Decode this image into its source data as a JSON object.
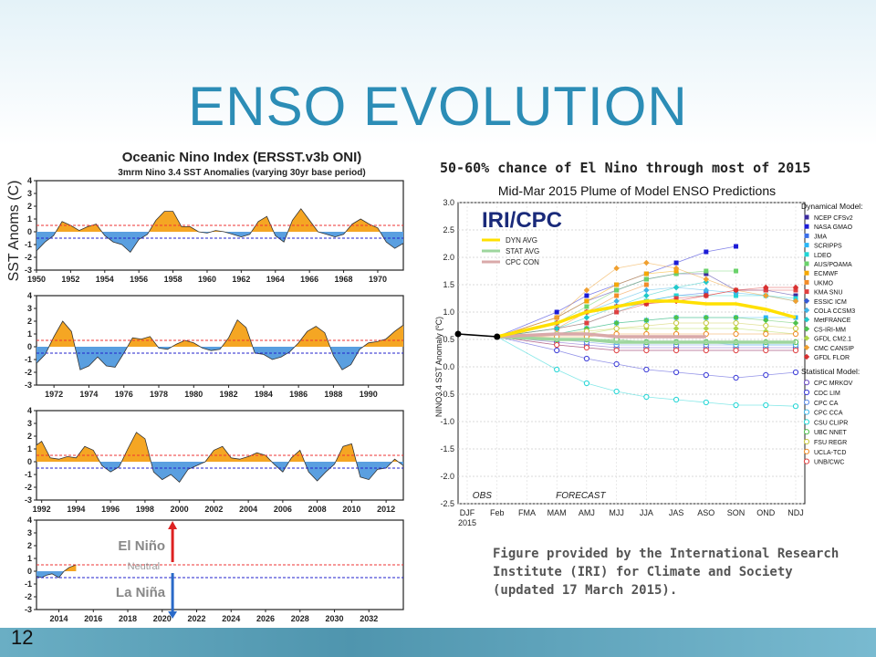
{
  "slide": {
    "title": "ENSO EVOLUTION",
    "page_number": "12",
    "headline": "50-60% chance of El Nino through most of 2015",
    "caption": "Figure provided by the International Research Institute (IRI) for Climate and Society (updated 17 March 2015)."
  },
  "colors": {
    "title": "#2c8db6",
    "warm_fill": "#f5a623",
    "cold_fill": "#5a9fe0",
    "threshold_warm": "#e33",
    "threshold_cold": "#22c",
    "dyn_avg": "#ffe000",
    "stat_avg": "#9ed69e",
    "cpc_con": "#d9a9a9"
  },
  "chart_data": [
    {
      "type": "area",
      "title": "Oceanic Nino Index (ERSST.v3b ONI)",
      "subtitle": "3mrm Nino 3.4 SST Anomalies (varying 30yr base period)",
      "ylabel": "SST Anoms (C)",
      "ylim": [
        -3,
        4
      ],
      "yticks": [
        "-3",
        "-2",
        "-1",
        "0",
        "1",
        "2",
        "3",
        "4"
      ],
      "thresholds": [
        0.5,
        -0.5
      ],
      "panels": [
        {
          "xticks": [
            "1950",
            "1952",
            "1954",
            "1956",
            "1958",
            "1960",
            "1962",
            "1964",
            "1966",
            "1968",
            "1970"
          ],
          "xrange": [
            1950,
            1971.5
          ],
          "x": [
            1950,
            1950.5,
            1951,
            1951.5,
            1952,
            1952.5,
            1953,
            1953.5,
            1954,
            1954.5,
            1955,
            1955.5,
            1956,
            1956.5,
            1957,
            1957.5,
            1958,
            1958.5,
            1959,
            1959.5,
            1960,
            1960.5,
            1961,
            1961.5,
            1962,
            1962.5,
            1963,
            1963.5,
            1964,
            1964.5,
            1965,
            1965.5,
            1966,
            1966.5,
            1967,
            1967.5,
            1968,
            1968.5,
            1969,
            1969.5,
            1970,
            1970.5,
            1971,
            1971.5
          ],
          "y": [
            -1.5,
            -0.8,
            -0.3,
            0.8,
            0.5,
            0.1,
            0.4,
            0.6,
            -0.3,
            -0.8,
            -1.0,
            -1.6,
            -0.6,
            -0.2,
            0.9,
            1.6,
            1.6,
            0.4,
            0.4,
            0.0,
            -0.1,
            0.1,
            0.0,
            -0.2,
            -0.4,
            -0.2,
            0.8,
            1.2,
            -0.3,
            -0.8,
            0.9,
            1.8,
            0.9,
            0.0,
            -0.2,
            -0.4,
            -0.2,
            0.6,
            1.0,
            0.6,
            0.3,
            -0.8,
            -1.3,
            -0.9
          ]
        },
        {
          "xticks": [
            "1972",
            "1974",
            "1976",
            "1978",
            "1980",
            "1982",
            "1984",
            "1986",
            "1988",
            "1990"
          ],
          "xrange": [
            1971,
            1992
          ],
          "x": [
            1971,
            1971.5,
            1972,
            1972.5,
            1973,
            1973.5,
            1974,
            1974.5,
            1975,
            1975.5,
            1976,
            1976.5,
            1977,
            1977.5,
            1978,
            1978.5,
            1979,
            1979.5,
            1980,
            1980.5,
            1981,
            1981.5,
            1982,
            1982.5,
            1983,
            1983.5,
            1984,
            1984.5,
            1985,
            1985.5,
            1986,
            1986.5,
            1987,
            1987.5,
            1988,
            1988.5,
            1989,
            1989.5,
            1990,
            1990.5,
            1991,
            1991.5,
            1992
          ],
          "y": [
            -1.3,
            -0.6,
            0.8,
            2.0,
            1.2,
            -1.8,
            -1.5,
            -0.8,
            -1.5,
            -1.6,
            -0.5,
            0.7,
            0.6,
            0.8,
            -0.1,
            -0.2,
            0.2,
            0.5,
            0.3,
            -0.1,
            -0.3,
            -0.2,
            0.7,
            2.1,
            1.5,
            -0.5,
            -0.6,
            -1.0,
            -0.8,
            -0.4,
            0.3,
            1.2,
            1.6,
            1.1,
            -0.7,
            -1.8,
            -1.4,
            -0.2,
            0.3,
            0.4,
            0.6,
            1.2,
            1.7
          ]
        },
        {
          "xticks": [
            "1992",
            "1994",
            "1996",
            "1998",
            "2000",
            "2002",
            "2004",
            "2006",
            "2008",
            "2010",
            "2012"
          ],
          "xrange": [
            1991.7,
            2013
          ],
          "x": [
            1991.7,
            1992,
            1992.5,
            1993,
            1993.5,
            1994,
            1994.5,
            1995,
            1995.5,
            1996,
            1996.5,
            1997,
            1997.5,
            1998,
            1998.5,
            1999,
            1999.5,
            2000,
            2000.5,
            2001,
            2001.5,
            2002,
            2002.5,
            2003,
            2003.5,
            2004,
            2004.5,
            2005,
            2005.5,
            2006,
            2006.5,
            2007,
            2007.5,
            2008,
            2008.5,
            2009,
            2009.5,
            2010,
            2010.5,
            2011,
            2011.5,
            2012,
            2012.5,
            2013
          ],
          "y": [
            1.3,
            1.6,
            0.3,
            0.2,
            0.4,
            0.3,
            1.2,
            0.9,
            -0.3,
            -0.8,
            -0.4,
            1.0,
            2.3,
            1.8,
            -0.8,
            -1.4,
            -1.0,
            -1.6,
            -0.6,
            -0.3,
            0.0,
            0.9,
            1.2,
            0.3,
            0.2,
            0.4,
            0.7,
            0.5,
            -0.2,
            -0.8,
            0.3,
            0.9,
            -0.8,
            -1.5,
            -0.8,
            -0.2,
            1.2,
            1.4,
            -1.2,
            -1.4,
            -0.6,
            -0.5,
            0.2,
            -0.3
          ]
        },
        {
          "xticks": [
            "2014",
            "2016",
            "2018",
            "2020",
            "2022",
            "2024",
            "2026",
            "2028",
            "2030",
            "2032"
          ],
          "xrange": [
            2012.7,
            2034
          ],
          "x": [
            2012.7,
            2013,
            2013.3,
            2013.6,
            2014,
            2014.3,
            2014.6,
            2015
          ],
          "y": [
            -0.4,
            -0.5,
            -0.3,
            -0.2,
            -0.5,
            0.0,
            0.3,
            0.5
          ],
          "annotations": [
            "El Niño",
            "Neutral",
            "La Niña"
          ]
        }
      ]
    },
    {
      "type": "line",
      "title": "Mid-Mar 2015 Plume of Model ENSO Predictions",
      "ylabel": "NINO3.4 SST Anomaly (ºC)",
      "ylim": [
        -2.5,
        3.0
      ],
      "yticks": [
        "3.0",
        "2.5",
        "2.0",
        "1.5",
        "1.0",
        "0.5",
        "0.0",
        "-0.5",
        "-1.0",
        "-1.5",
        "-2.0",
        "-2.5"
      ],
      "categories": [
        "DJF",
        "Feb",
        "FMA",
        "MAM",
        "AMJ",
        "MJJ",
        "JJA",
        "JAS",
        "ASO",
        "SON",
        "OND",
        "NDJ"
      ],
      "year_label": "2015",
      "period_labels": [
        "OBS",
        "FORECAST"
      ],
      "logo_text": "IRI/CPC",
      "inset_legend": [
        "DYN AVG",
        "STAT AVG",
        "CPC CON"
      ],
      "legend_dynamical_title": "Dynamical Model:",
      "legend_dynamical": [
        {
          "name": "NCEP CFSv2",
          "color": "#3b2b9e",
          "marker": "square"
        },
        {
          "name": "NASA GMAO",
          "color": "#1b1bd6",
          "marker": "square"
        },
        {
          "name": "JMA",
          "color": "#3a6ee8",
          "marker": "square"
        },
        {
          "name": "SCRIPPS",
          "color": "#29b6f6",
          "marker": "square"
        },
        {
          "name": "LDEO",
          "color": "#20d5d5",
          "marker": "square"
        },
        {
          "name": "AUS/POAMA",
          "color": "#6ad26a",
          "marker": "square"
        },
        {
          "name": "ECMWF",
          "color": "#f6a800",
          "marker": "square"
        },
        {
          "name": "UKMO",
          "color": "#f28c28",
          "marker": "square"
        },
        {
          "name": "KMA SNU",
          "color": "#e04040",
          "marker": "square"
        },
        {
          "name": "ESSIC ICM",
          "color": "#3559d6",
          "marker": "diamond"
        },
        {
          "name": "COLA CCSM3",
          "color": "#40b6e8",
          "marker": "diamond"
        },
        {
          "name": "MetFRANCE",
          "color": "#20c9c9",
          "marker": "diamond"
        },
        {
          "name": "CS-IRI-MM",
          "color": "#4ec24e",
          "marker": "diamond"
        },
        {
          "name": "GFDL CM2.1",
          "color": "#b0d84a",
          "marker": "diamond"
        },
        {
          "name": "CMC CANSIP",
          "color": "#f0a030",
          "marker": "diamond"
        },
        {
          "name": "GFDL FLOR",
          "color": "#d83030",
          "marker": "diamond"
        }
      ],
      "legend_statistical_title": "Statistical Model:",
      "legend_statistical": [
        {
          "name": "CPC MRKOV",
          "color": "#6a4bc4",
          "marker": "circle"
        },
        {
          "name": "CDC LIM",
          "color": "#3a3ad6",
          "marker": "circle"
        },
        {
          "name": "CPC CA",
          "color": "#5a8ae8",
          "marker": "circle"
        },
        {
          "name": "CPC CCA",
          "color": "#40b6e8",
          "marker": "circle"
        },
        {
          "name": "CSU CLIPR",
          "color": "#20d5d5",
          "marker": "circle"
        },
        {
          "name": "UBC NNET",
          "color": "#50c050",
          "marker": "circle"
        },
        {
          "name": "FSU REGR",
          "color": "#c8c840",
          "marker": "circle"
        },
        {
          "name": "UCLA-TCD",
          "color": "#f08c28",
          "marker": "circle"
        },
        {
          "name": "UNB/CWC",
          "color": "#e04040",
          "marker": "circle"
        }
      ],
      "observed": [
        0.6,
        0.55
      ],
      "dyn_avg": [
        0.55,
        0.55,
        null,
        0.8,
        1.0,
        1.1,
        1.2,
        1.2,
        1.15,
        1.15,
        1.05,
        0.9
      ],
      "stat_avg": [
        0.55,
        0.55,
        null,
        0.5,
        0.5,
        0.45,
        0.45,
        0.45,
        0.45,
        0.45,
        0.45,
        0.45
      ],
      "cpc_con": [
        0.55,
        0.55,
        null,
        0.6,
        0.6,
        0.55,
        0.55,
        0.55,
        0.55,
        null,
        null,
        null
      ],
      "series": [
        {
          "name": "NCEP CFSv2",
          "values": [
            0.55,
            0.55,
            null,
            0.9,
            1.2,
            1.4,
            1.6,
            1.7,
            1.7,
            1.4,
            1.4,
            1.3
          ]
        },
        {
          "name": "NASA GMAO",
          "values": [
            0.55,
            0.55,
            null,
            1.0,
            1.3,
            1.5,
            1.7,
            1.9,
            2.1,
            2.2,
            null,
            null
          ]
        },
        {
          "name": "JMA",
          "values": [
            0.55,
            0.55,
            null,
            0.8,
            1.0,
            1.1,
            1.2,
            1.3,
            1.35,
            null,
            null,
            null
          ]
        },
        {
          "name": "SCRIPPS",
          "values": [
            0.55,
            0.55,
            null,
            0.6,
            0.7,
            0.8,
            0.85,
            0.9,
            0.9,
            0.9,
            0.9,
            0.9
          ]
        },
        {
          "name": "LDEO",
          "values": [
            0.55,
            0.55,
            null,
            0.7,
            0.8,
            1.0,
            1.2,
            1.3,
            1.3,
            1.3,
            1.3,
            1.25
          ]
        },
        {
          "name": "AUS/POAMA",
          "values": [
            0.55,
            0.55,
            null,
            0.8,
            1.1,
            1.4,
            1.6,
            1.7,
            1.75,
            1.75,
            null,
            null
          ]
        },
        {
          "name": "ECMWF",
          "values": [
            0.55,
            0.55,
            null,
            0.9,
            1.2,
            1.5,
            1.7,
            1.75,
            null,
            null,
            null,
            null
          ]
        },
        {
          "name": "UKMO",
          "values": [
            0.55,
            0.55,
            null,
            0.7,
            1.0,
            1.3,
            1.5,
            null,
            null,
            null,
            null,
            null
          ]
        },
        {
          "name": "KMA SNU",
          "values": [
            0.55,
            0.55,
            null,
            0.7,
            0.8,
            1.0,
            1.15,
            1.25,
            1.3,
            1.4,
            1.4,
            1.4
          ]
        },
        {
          "name": "ESSIC ICM",
          "values": [
            0.55,
            0.55,
            null,
            0.4,
            0.35,
            0.3,
            0.3,
            0.3,
            0.3,
            0.3,
            0.3,
            0.3
          ]
        },
        {
          "name": "COLA CCSM3",
          "values": [
            0.55,
            0.55,
            null,
            0.8,
            1.0,
            1.2,
            1.4,
            1.45,
            1.4,
            1.35,
            1.3,
            1.2
          ]
        },
        {
          "name": "MetFRANCE",
          "values": [
            0.55,
            0.55,
            null,
            0.7,
            0.9,
            1.1,
            1.3,
            1.45,
            1.55,
            null,
            null,
            null
          ]
        },
        {
          "name": "CS-IRI-MM",
          "values": [
            0.55,
            0.55,
            null,
            0.6,
            0.7,
            0.8,
            0.85,
            0.9,
            0.9,
            0.9,
            0.85,
            0.8
          ]
        },
        {
          "name": "GFDL CM2.1",
          "values": [
            0.55,
            0.55,
            null,
            0.6,
            0.6,
            0.7,
            0.7,
            0.7,
            0.7,
            0.7,
            0.65,
            0.6
          ]
        },
        {
          "name": "CMC CANSIP",
          "values": [
            0.55,
            0.55,
            null,
            0.9,
            1.4,
            1.8,
            1.9,
            1.8,
            1.6,
            1.4,
            1.3,
            1.2
          ]
        },
        {
          "name": "GFDL FLOR",
          "values": [
            0.55,
            0.55,
            null,
            0.8,
            1.0,
            1.1,
            1.15,
            1.2,
            1.3,
            1.4,
            1.45,
            1.45
          ]
        },
        {
          "name": "CPC MRKOV",
          "values": [
            0.55,
            0.55,
            null,
            0.45,
            0.4,
            0.35,
            0.35,
            0.35,
            0.35,
            0.35,
            0.35,
            0.35
          ]
        },
        {
          "name": "CDC LIM",
          "values": [
            0.55,
            0.55,
            null,
            0.3,
            0.15,
            0.05,
            -0.05,
            -0.1,
            -0.15,
            -0.2,
            -0.15,
            -0.1
          ]
        },
        {
          "name": "CPC CA",
          "values": [
            0.55,
            0.55,
            null,
            0.5,
            0.45,
            0.4,
            0.4,
            0.4,
            0.4,
            0.4,
            0.4,
            0.4
          ]
        },
        {
          "name": "CPC CCA",
          "values": [
            0.55,
            0.55,
            null,
            0.5,
            0.5,
            0.45,
            0.45,
            0.45,
            0.45,
            0.4,
            0.4,
            0.4
          ]
        },
        {
          "name": "CSU CLIPR",
          "values": [
            0.55,
            0.55,
            null,
            -0.05,
            -0.3,
            -0.45,
            -0.55,
            -0.6,
            -0.65,
            -0.7,
            -0.7,
            -0.72
          ]
        },
        {
          "name": "UBC NNET",
          "values": [
            0.55,
            0.55,
            null,
            0.5,
            0.5,
            0.5,
            0.45,
            0.45,
            0.45,
            0.45,
            0.45,
            0.45
          ]
        },
        {
          "name": "FSU REGR",
          "values": [
            0.55,
            0.55,
            null,
            0.6,
            0.65,
            0.7,
            0.75,
            0.8,
            0.8,
            0.8,
            0.75,
            0.7
          ]
        },
        {
          "name": "UCLA-TCD",
          "values": [
            0.55,
            0.55,
            null,
            0.55,
            0.55,
            0.6,
            0.6,
            0.6,
            0.6,
            0.6,
            0.6,
            0.6
          ]
        },
        {
          "name": "UNB/CWC",
          "values": [
            0.55,
            0.55,
            null,
            0.4,
            0.35,
            0.3,
            0.3,
            0.3,
            0.3,
            0.3,
            0.3,
            0.3
          ]
        }
      ]
    }
  ]
}
